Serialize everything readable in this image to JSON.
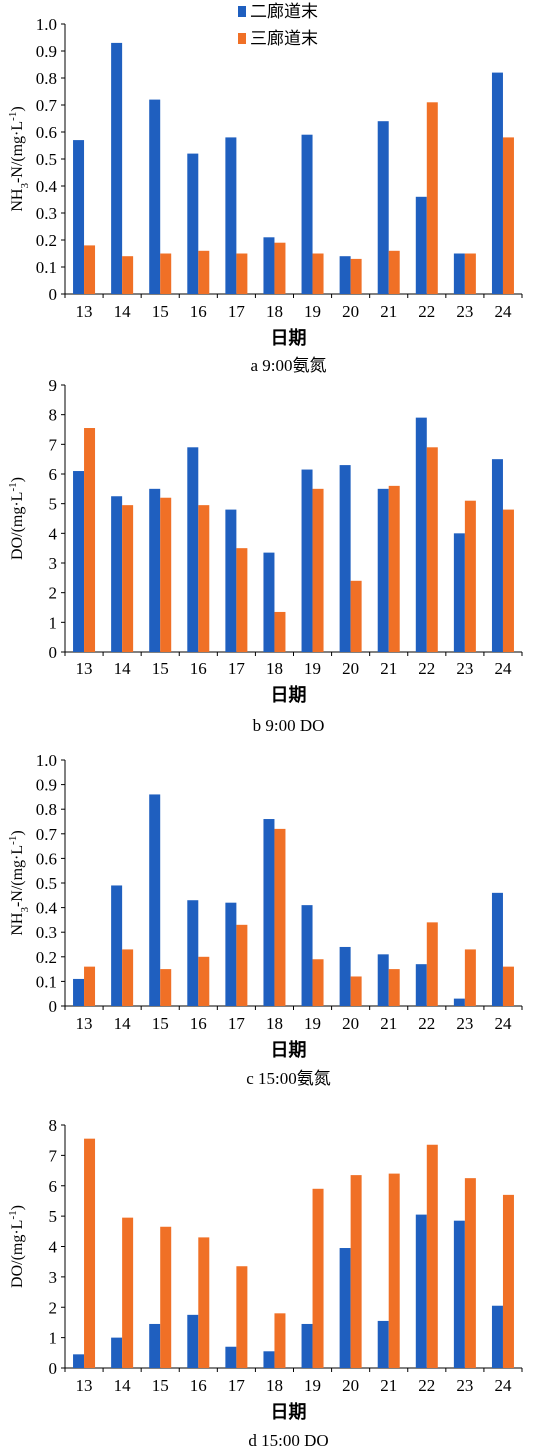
{
  "colors": {
    "series1": "#1f5fbf",
    "series2": "#f07026",
    "axis": "#000000"
  },
  "legend": {
    "series1": "二廊道末",
    "series2": "三廊道末",
    "placement": "top-center"
  },
  "chart_data": [
    {
      "type": "bar",
      "title": "a 9:00氨氮",
      "xlabel": "日期",
      "ylabel": "NH3-N/(mg·L-1)",
      "ylim": [
        0,
        1.0
      ],
      "ytick_step": 0.1,
      "yticks": [
        "0",
        "0.1",
        "0.2",
        "0.3",
        "0.4",
        "0.5",
        "0.6",
        "0.7",
        "0.8",
        "0.9",
        "1.0"
      ],
      "categories": [
        "13",
        "14",
        "15",
        "16",
        "17",
        "18",
        "19",
        "20",
        "21",
        "22",
        "23",
        "24"
      ],
      "series": [
        {
          "name": "二廊道末",
          "values": [
            0.57,
            0.93,
            0.72,
            0.52,
            0.58,
            0.21,
            0.59,
            0.14,
            0.64,
            0.36,
            0.15,
            0.82
          ]
        },
        {
          "name": "三廊道末",
          "values": [
            0.18,
            0.14,
            0.15,
            0.16,
            0.15,
            0.19,
            0.15,
            0.13,
            0.16,
            0.71,
            0.15,
            0.58
          ]
        }
      ]
    },
    {
      "type": "bar",
      "title": "b 9:00 DO",
      "xlabel": "日期",
      "ylabel": "DO/(mg·L-1)",
      "ylim": [
        0,
        9
      ],
      "ytick_step": 1,
      "yticks": [
        "0",
        "1",
        "2",
        "3",
        "4",
        "5",
        "6",
        "7",
        "8",
        "9"
      ],
      "categories": [
        "13",
        "14",
        "15",
        "16",
        "17",
        "18",
        "19",
        "20",
        "21",
        "22",
        "23",
        "24"
      ],
      "series": [
        {
          "name": "二廊道末",
          "values": [
            6.1,
            5.25,
            5.5,
            6.9,
            4.8,
            3.35,
            6.15,
            6.3,
            5.5,
            7.9,
            4.0,
            6.5
          ]
        },
        {
          "name": "三廊道末",
          "values": [
            7.55,
            4.95,
            5.2,
            4.95,
            3.5,
            1.35,
            5.5,
            2.4,
            5.6,
            6.9,
            5.1,
            4.8
          ]
        }
      ]
    },
    {
      "type": "bar",
      "title": "c 15:00氨氮",
      "xlabel": "日期",
      "ylabel": "NH3-N/(mg·L-1)",
      "ylim": [
        0,
        1.0
      ],
      "ytick_step": 0.1,
      "yticks": [
        "0",
        "0.1",
        "0.2",
        "0.3",
        "0.4",
        "0.5",
        "0.6",
        "0.7",
        "0.8",
        "0.9",
        "1.0"
      ],
      "categories": [
        "13",
        "14",
        "15",
        "16",
        "17",
        "18",
        "19",
        "20",
        "21",
        "22",
        "23",
        "24"
      ],
      "series": [
        {
          "name": "二廊道末",
          "values": [
            0.11,
            0.49,
            0.86,
            0.43,
            0.42,
            0.76,
            0.41,
            0.24,
            0.21,
            0.17,
            0.03,
            0.46
          ]
        },
        {
          "name": "三廊道末",
          "values": [
            0.16,
            0.23,
            0.15,
            0.2,
            0.33,
            0.72,
            0.19,
            0.12,
            0.15,
            0.34,
            0.23,
            0.16
          ]
        }
      ]
    },
    {
      "type": "bar",
      "title": "d 15:00 DO",
      "xlabel": "日期",
      "ylabel": "DO/(mg·L-1)",
      "ylim": [
        0,
        8
      ],
      "ytick_step": 1,
      "yticks": [
        "0",
        "1",
        "2",
        "3",
        "4",
        "5",
        "6",
        "7",
        "8"
      ],
      "categories": [
        "13",
        "14",
        "15",
        "16",
        "17",
        "18",
        "19",
        "20",
        "21",
        "22",
        "23",
        "24"
      ],
      "series": [
        {
          "name": "二廊道末",
          "values": [
            0.45,
            1.0,
            1.45,
            1.75,
            0.7,
            0.55,
            1.45,
            3.95,
            1.55,
            5.05,
            4.85,
            2.05
          ]
        },
        {
          "name": "三廊道末",
          "values": [
            7.55,
            4.95,
            4.65,
            4.3,
            3.35,
            1.8,
            5.9,
            6.35,
            6.4,
            7.35,
            6.25,
            5.7
          ]
        }
      ]
    }
  ]
}
